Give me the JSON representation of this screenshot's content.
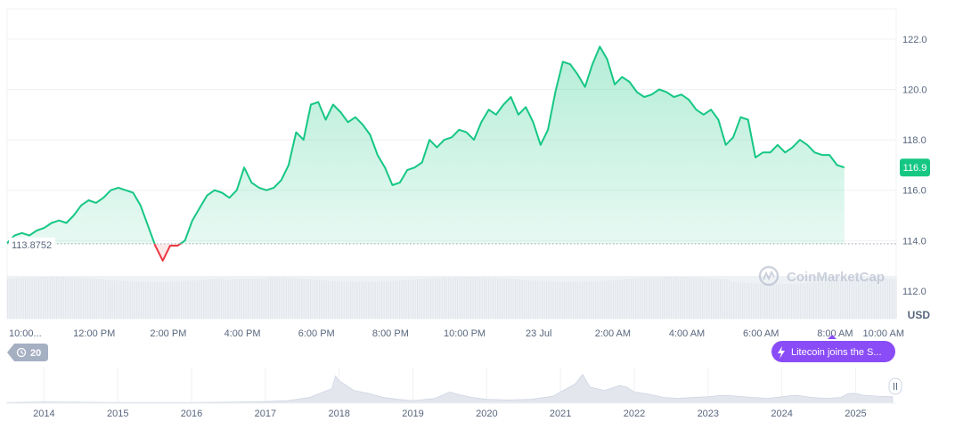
{
  "chart_data": {
    "type": "area",
    "currency_label": "USD",
    "baseline_value": 113.8752,
    "baseline_label": "113.8752",
    "current_value": 116.9,
    "current_label": "116.9",
    "ylim": [
      110.9,
      123.2
    ],
    "y_ticks": [
      {
        "value": 112.0,
        "label": "112.0"
      },
      {
        "value": 114.0,
        "label": "114.0"
      },
      {
        "value": 116.0,
        "label": "116.0"
      },
      {
        "value": 118.0,
        "label": "118.0"
      },
      {
        "value": 120.0,
        "label": "120.0"
      },
      {
        "value": 122.0,
        "label": "122.0"
      }
    ],
    "xlim": [
      0,
      24.0
    ],
    "x_ticks": [
      {
        "value": 0.35,
        "label": "10:00..."
      },
      {
        "value": 2.35,
        "label": "12:00 PM"
      },
      {
        "value": 4.35,
        "label": "2:00 PM"
      },
      {
        "value": 6.35,
        "label": "4:00 PM"
      },
      {
        "value": 8.35,
        "label": "6:00 PM"
      },
      {
        "value": 10.35,
        "label": "8:00 PM"
      },
      {
        "value": 12.35,
        "label": "10:00 PM"
      },
      {
        "value": 14.35,
        "label": "23 Jul"
      },
      {
        "value": 16.35,
        "label": "2:00 AM"
      },
      {
        "value": 18.35,
        "label": "4:00 AM"
      },
      {
        "value": 20.35,
        "label": "6:00 AM"
      },
      {
        "value": 22.35,
        "label": "8:00 AM"
      },
      {
        "value": 24.35,
        "label": "10:00 AM"
      }
    ],
    "series": [
      {
        "points": [
          [
            0.0,
            113.9
          ],
          [
            0.2,
            114.2
          ],
          [
            0.4,
            114.3
          ],
          [
            0.6,
            114.2
          ],
          [
            0.8,
            114.4
          ],
          [
            1.0,
            114.5
          ],
          [
            1.2,
            114.7
          ],
          [
            1.4,
            114.8
          ],
          [
            1.6,
            114.7
          ],
          [
            1.8,
            115.0
          ],
          [
            2.0,
            115.4
          ],
          [
            2.2,
            115.6
          ],
          [
            2.4,
            115.5
          ],
          [
            2.6,
            115.7
          ],
          [
            2.8,
            116.0
          ],
          [
            3.0,
            116.1
          ],
          [
            3.2,
            116.0
          ],
          [
            3.4,
            115.9
          ],
          [
            3.6,
            115.4
          ],
          [
            3.8,
            114.6
          ],
          [
            4.0,
            113.8
          ],
          [
            4.2,
            113.2
          ],
          [
            4.4,
            113.8
          ],
          [
            4.6,
            113.8
          ],
          [
            4.8,
            114.0
          ],
          [
            5.0,
            114.8
          ],
          [
            5.2,
            115.3
          ],
          [
            5.4,
            115.8
          ],
          [
            5.6,
            116.0
          ],
          [
            5.8,
            115.9
          ],
          [
            6.0,
            115.7
          ],
          [
            6.2,
            116.0
          ],
          [
            6.4,
            116.9
          ],
          [
            6.6,
            116.3
          ],
          [
            6.8,
            116.1
          ],
          [
            7.0,
            116.0
          ],
          [
            7.2,
            116.1
          ],
          [
            7.4,
            116.4
          ],
          [
            7.6,
            117.0
          ],
          [
            7.8,
            118.3
          ],
          [
            8.0,
            118.0
          ],
          [
            8.2,
            119.4
          ],
          [
            8.4,
            119.5
          ],
          [
            8.6,
            118.8
          ],
          [
            8.8,
            119.4
          ],
          [
            9.0,
            119.1
          ],
          [
            9.2,
            118.7
          ],
          [
            9.4,
            118.9
          ],
          [
            9.6,
            118.6
          ],
          [
            9.8,
            118.2
          ],
          [
            10.0,
            117.4
          ],
          [
            10.2,
            116.9
          ],
          [
            10.4,
            116.2
          ],
          [
            10.6,
            116.3
          ],
          [
            10.8,
            116.8
          ],
          [
            11.0,
            116.9
          ],
          [
            11.2,
            117.1
          ],
          [
            11.4,
            118.0
          ],
          [
            11.6,
            117.7
          ],
          [
            11.8,
            118.0
          ],
          [
            12.0,
            118.1
          ],
          [
            12.2,
            118.4
          ],
          [
            12.4,
            118.3
          ],
          [
            12.6,
            118.0
          ],
          [
            12.8,
            118.7
          ],
          [
            13.0,
            119.2
          ],
          [
            13.2,
            119.0
          ],
          [
            13.4,
            119.4
          ],
          [
            13.6,
            119.7
          ],
          [
            13.8,
            119.0
          ],
          [
            14.0,
            119.3
          ],
          [
            14.2,
            118.7
          ],
          [
            14.4,
            117.8
          ],
          [
            14.6,
            118.4
          ],
          [
            14.8,
            119.9
          ],
          [
            15.0,
            121.1
          ],
          [
            15.2,
            121.0
          ],
          [
            15.4,
            120.6
          ],
          [
            15.6,
            120.1
          ],
          [
            15.8,
            121.0
          ],
          [
            16.0,
            121.7
          ],
          [
            16.2,
            121.2
          ],
          [
            16.4,
            120.2
          ],
          [
            16.6,
            120.5
          ],
          [
            16.8,
            120.3
          ],
          [
            17.0,
            119.9
          ],
          [
            17.2,
            119.7
          ],
          [
            17.4,
            119.8
          ],
          [
            17.6,
            120.0
          ],
          [
            17.8,
            119.9
          ],
          [
            18.0,
            119.7
          ],
          [
            18.2,
            119.8
          ],
          [
            18.4,
            119.6
          ],
          [
            18.6,
            119.2
          ],
          [
            18.8,
            119.0
          ],
          [
            19.0,
            119.2
          ],
          [
            19.2,
            118.8
          ],
          [
            19.4,
            117.8
          ],
          [
            19.6,
            118.1
          ],
          [
            19.8,
            118.9
          ],
          [
            20.0,
            118.8
          ],
          [
            20.2,
            117.3
          ],
          [
            20.4,
            117.5
          ],
          [
            20.6,
            117.5
          ],
          [
            20.8,
            117.8
          ],
          [
            21.0,
            117.5
          ],
          [
            21.2,
            117.7
          ],
          [
            21.4,
            118.0
          ],
          [
            21.6,
            117.8
          ],
          [
            21.8,
            117.5
          ],
          [
            22.0,
            117.4
          ],
          [
            22.2,
            117.4
          ],
          [
            22.4,
            117.0
          ],
          [
            22.6,
            116.9
          ]
        ]
      }
    ],
    "colors": {
      "up_line": "#16c784",
      "down_line": "#ea3943",
      "badge_bg": "#16c784",
      "grid": "#f0f1f4",
      "axis_text": "#58667e"
    },
    "watermark": "CoinMarketCap",
    "history_badge": {
      "count": "20",
      "icon": "history-icon"
    },
    "news_badge": {
      "text": "Litecoin joins the S...",
      "icon": "lightning-icon",
      "color": "#8a4cf7"
    },
    "navigator": {
      "x_ticks": [
        {
          "value": 2014,
          "label": "2014"
        },
        {
          "value": 2015,
          "label": "2015"
        },
        {
          "value": 2016,
          "label": "2016"
        },
        {
          "value": 2017,
          "label": "2017"
        },
        {
          "value": 2018,
          "label": "2018"
        },
        {
          "value": 2019,
          "label": "2019"
        },
        {
          "value": 2020,
          "label": "2020"
        },
        {
          "value": 2021,
          "label": "2021"
        },
        {
          "value": 2022,
          "label": "2022"
        },
        {
          "value": 2023,
          "label": "2023"
        },
        {
          "value": 2024,
          "label": "2024"
        },
        {
          "value": 2025,
          "label": "2025"
        }
      ],
      "xlim": [
        2013.5,
        2025.55
      ],
      "points": [
        [
          2013.5,
          0.02
        ],
        [
          2014.0,
          0.04
        ],
        [
          2014.5,
          0.03
        ],
        [
          2015.0,
          0.02
        ],
        [
          2015.5,
          0.02
        ],
        [
          2016.0,
          0.02
        ],
        [
          2016.5,
          0.03
        ],
        [
          2017.0,
          0.05
        ],
        [
          2017.3,
          0.08
        ],
        [
          2017.6,
          0.18
        ],
        [
          2017.9,
          0.45
        ],
        [
          2017.95,
          0.85
        ],
        [
          2018.0,
          0.7
        ],
        [
          2018.1,
          0.55
        ],
        [
          2018.2,
          0.4
        ],
        [
          2018.4,
          0.3
        ],
        [
          2018.6,
          0.18
        ],
        [
          2018.8,
          0.12
        ],
        [
          2019.0,
          0.08
        ],
        [
          2019.3,
          0.15
        ],
        [
          2019.5,
          0.35
        ],
        [
          2019.6,
          0.28
        ],
        [
          2019.8,
          0.18
        ],
        [
          2020.0,
          0.12
        ],
        [
          2020.3,
          0.1
        ],
        [
          2020.6,
          0.12
        ],
        [
          2020.9,
          0.22
        ],
        [
          2021.0,
          0.35
        ],
        [
          2021.2,
          0.6
        ],
        [
          2021.3,
          0.9
        ],
        [
          2021.4,
          0.5
        ],
        [
          2021.6,
          0.4
        ],
        [
          2021.8,
          0.55
        ],
        [
          2021.9,
          0.5
        ],
        [
          2022.0,
          0.35
        ],
        [
          2022.2,
          0.28
        ],
        [
          2022.4,
          0.18
        ],
        [
          2022.6,
          0.15
        ],
        [
          2022.8,
          0.18
        ],
        [
          2023.0,
          0.2
        ],
        [
          2023.2,
          0.25
        ],
        [
          2023.4,
          0.22
        ],
        [
          2023.6,
          0.18
        ],
        [
          2023.8,
          0.15
        ],
        [
          2024.0,
          0.2
        ],
        [
          2024.2,
          0.25
        ],
        [
          2024.4,
          0.18
        ],
        [
          2024.6,
          0.15
        ],
        [
          2024.8,
          0.18
        ],
        [
          2024.9,
          0.3
        ],
        [
          2025.0,
          0.3
        ],
        [
          2025.1,
          0.25
        ],
        [
          2025.3,
          0.22
        ],
        [
          2025.5,
          0.2
        ]
      ]
    }
  }
}
